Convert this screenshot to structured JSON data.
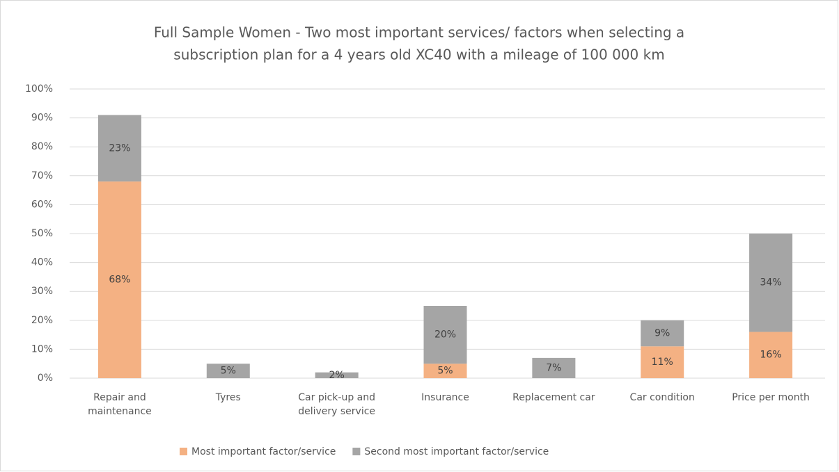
{
  "chart_data": {
    "type": "stacked_bar",
    "title": [
      "Full Sample Women - Two most important services/ factors when selecting a",
      "subscription plan for a 4 years old XC40 with a mileage of 100 000 km"
    ],
    "categories": [
      "Repair and maintenance",
      "Tyres",
      "Car pick-up and delivery service",
      "Insurance",
      "Replacement car",
      "Car condition",
      "Price per month"
    ],
    "series": [
      {
        "name": "Most important factor/service",
        "color": "#f4b183",
        "values": [
          68,
          null,
          null,
          5,
          null,
          11,
          16
        ],
        "value_labels": [
          "68%",
          null,
          null,
          "5%",
          null,
          "11%",
          "16%"
        ]
      },
      {
        "name": "Second most important factor/service",
        "color": "#a5a5a5",
        "values": [
          23,
          5,
          2,
          20,
          7,
          9,
          34
        ],
        "value_labels": [
          "23%",
          "5%",
          "2%",
          "20%",
          "7%",
          "9%",
          "34%"
        ]
      }
    ],
    "ylim": [
      0,
      100
    ],
    "yticks": [
      {
        "value": 0,
        "label": "0%"
      },
      {
        "value": 10,
        "label": "10%"
      },
      {
        "value": 20,
        "label": "20%"
      },
      {
        "value": 30,
        "label": "30%"
      },
      {
        "value": 40,
        "label": "40%"
      },
      {
        "value": 50,
        "label": "50%"
      },
      {
        "value": 60,
        "label": "60%"
      },
      {
        "value": 70,
        "label": "70%"
      },
      {
        "value": 80,
        "label": "80%"
      },
      {
        "value": 90,
        "label": "90%"
      },
      {
        "value": 100,
        "label": "100%"
      }
    ],
    "grid": true,
    "legend": "bottom"
  }
}
